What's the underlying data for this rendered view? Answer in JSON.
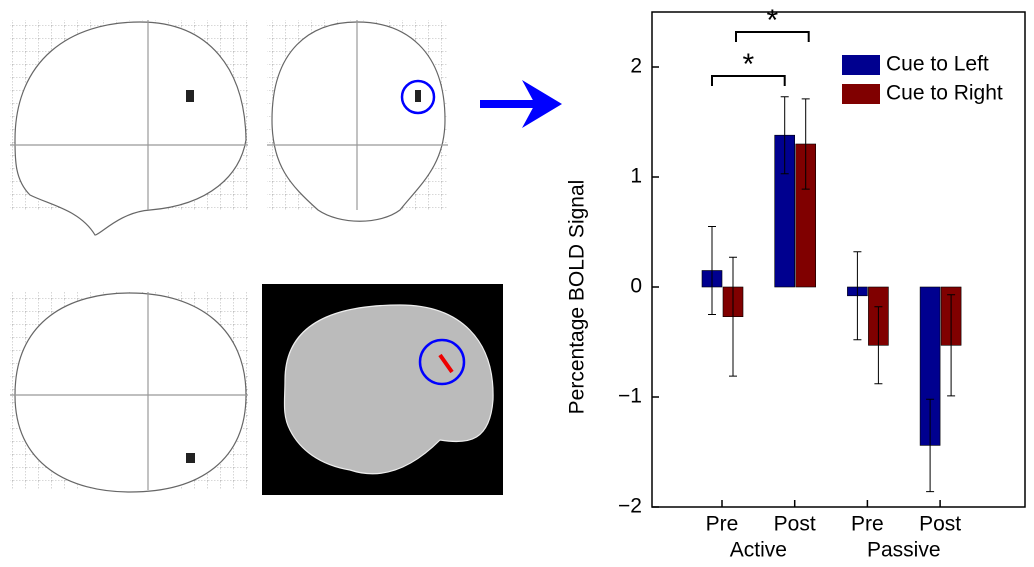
{
  "chart_data": {
    "type": "bar",
    "ylabel": "Percentage BOLD Signal",
    "categories": [
      "Pre",
      "Post",
      "Pre",
      "Post"
    ],
    "groups": [
      "Active",
      "Passive"
    ],
    "series": [
      {
        "name": "Cue to Left",
        "color": "#00008f",
        "values": [
          0.15,
          1.38,
          -0.08,
          -1.44
        ],
        "errors": [
          0.4,
          0.35,
          0.4,
          0.42
        ]
      },
      {
        "name": "Cue to Right",
        "color": "#800000",
        "values": [
          -0.27,
          1.3,
          -0.53,
          -0.53
        ],
        "errors": [
          0.54,
          0.41,
          0.35,
          0.46
        ]
      }
    ],
    "annotations": [
      "*",
      "*"
    ],
    "ylim": [
      -2,
      2.5
    ],
    "yticks": [
      {
        "value": -2,
        "label": "−2"
      },
      {
        "value": -1,
        "label": "−1"
      },
      0,
      1,
      2
    ]
  }
}
